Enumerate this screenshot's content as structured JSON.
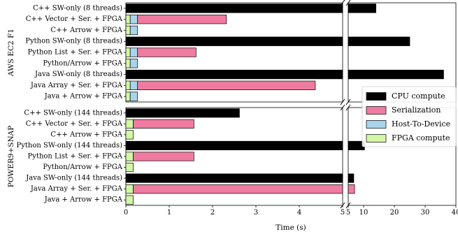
{
  "chart_data": {
    "type": "bar",
    "orientation": "horizontal",
    "stacked": true,
    "broken_x_axis": true,
    "xlabel": "Time (s)",
    "segment_order": [
      "FPGA compute",
      "Host-To-Device",
      "Serialization",
      "CPU compute"
    ],
    "legend": {
      "placement": "right",
      "entries": [
        {
          "name": "CPU compute",
          "color": "#000000"
        },
        {
          "name": "Serialization",
          "color": "#f07ba0"
        },
        {
          "name": "Host-To-Device",
          "color": "#a9d4ec"
        },
        {
          "name": "FPGA compute",
          "color": "#d3f7a6"
        }
      ]
    },
    "left_axis": {
      "range": [
        0,
        5
      ],
      "ticks": [
        "0",
        "1",
        "2",
        "3",
        "4",
        "5"
      ]
    },
    "right_axis": {
      "range": [
        5,
        40
      ],
      "ticks": [
        "5",
        "10",
        "20",
        "30",
        "40"
      ]
    },
    "panels": [
      {
        "label": "AWS EC2 F1",
        "rows": [
          {
            "category": "C++ SW-only (8 threads)",
            "cpu": 14,
            "serialization": 0,
            "h2d": 0,
            "fpga": 0
          },
          {
            "category": "C++ Vector + Ser. + FPGA",
            "cpu": 0,
            "serialization": 2.05,
            "h2d": 0.17,
            "fpga": 0.1
          },
          {
            "category": "C++ Arrow + FPGA",
            "cpu": 0,
            "serialization": 0,
            "h2d": 0.17,
            "fpga": 0.1
          },
          {
            "category": "Python SW-only (8 threads)",
            "cpu": 25,
            "serialization": 0,
            "h2d": 0,
            "fpga": 0
          },
          {
            "category": "Python List + Ser. + FPGA",
            "cpu": 0,
            "serialization": 1.35,
            "h2d": 0.17,
            "fpga": 0.1
          },
          {
            "category": "Python/Arrow + FPGA",
            "cpu": 0,
            "serialization": 0,
            "h2d": 0.17,
            "fpga": 0.1
          },
          {
            "category": "Java SW-only (8 threads)",
            "cpu": 36,
            "serialization": 0,
            "h2d": 0,
            "fpga": 0
          },
          {
            "category": "Java Array + Ser. + FPGA",
            "cpu": 0,
            "serialization": 4.1,
            "h2d": 0.17,
            "fpga": 0.1
          },
          {
            "category": "Java + Arrow + FPGA",
            "cpu": 0,
            "serialization": 0,
            "h2d": 0.17,
            "fpga": 0.1
          }
        ]
      },
      {
        "label": "POWER9+SNAP",
        "rows": [
          {
            "category": "C++ SW-only (144 threads)",
            "cpu": 2.62,
            "serialization": 0,
            "h2d": 0,
            "fpga": 0
          },
          {
            "category": "C++ Vector + Ser. + FPGA",
            "cpu": 0,
            "serialization": 1.4,
            "h2d": 0,
            "fpga": 0.17
          },
          {
            "category": "C++ Arrow + FPGA",
            "cpu": 0,
            "serialization": 0,
            "h2d": 0,
            "fpga": 0.17
          },
          {
            "category": "Python SW-only (144 threads)",
            "cpu": 10.3,
            "serialization": 0,
            "h2d": 0,
            "fpga": 0
          },
          {
            "category": "Python List + Ser. + FPGA",
            "cpu": 0,
            "serialization": 1.4,
            "h2d": 0,
            "fpga": 0.17
          },
          {
            "category": "Python/Arrow + FPGA",
            "cpu": 0,
            "serialization": 0,
            "h2d": 0,
            "fpga": 0.17
          },
          {
            "category": "Java SW-only (144 threads)",
            "cpu": 6.8,
            "serialization": 0,
            "h2d": 0,
            "fpga": 0
          },
          {
            "category": "Java Array + Ser. + FPGA",
            "cpu": 0,
            "serialization": 6.9,
            "h2d": 0,
            "fpga": 0.17
          },
          {
            "category": "Java + Arrow + FPGA",
            "cpu": 0,
            "serialization": 0,
            "h2d": 0,
            "fpga": 0.17
          }
        ]
      }
    ]
  }
}
